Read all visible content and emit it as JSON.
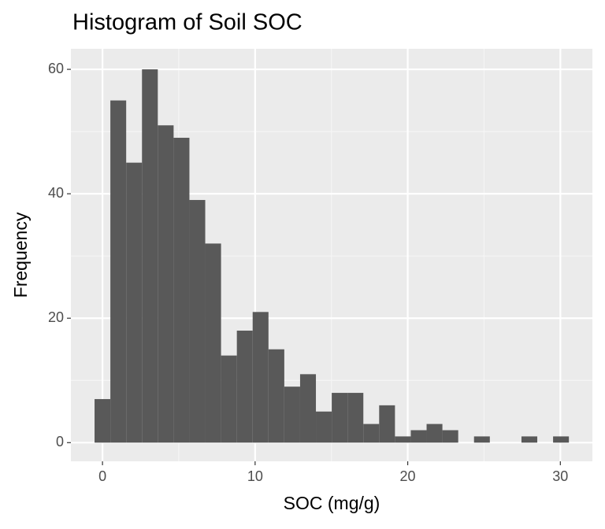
{
  "chart_data": {
    "type": "histogram",
    "title": "Histogram of Soil SOC",
    "x_label": "SOC (mg/g)",
    "y_label": "Frequency",
    "bins": [
      -0.52,
      0.516,
      1.552,
      2.588,
      3.624,
      4.66,
      5.696,
      6.732,
      7.768,
      8.804,
      9.84,
      10.876,
      11.912,
      12.948,
      13.984,
      15.02,
      16.056,
      17.092,
      18.128,
      19.164,
      20.2,
      21.236,
      22.272,
      23.308,
      24.344,
      25.38,
      26.416,
      27.452,
      28.488,
      29.524,
      30.56
    ],
    "values": [
      7,
      55,
      45,
      60,
      51,
      49,
      39,
      32,
      14,
      18,
      21,
      15,
      9,
      11,
      5,
      8,
      8,
      3,
      6,
      1,
      2,
      3,
      2,
      0,
      1,
      0,
      0,
      1,
      0,
      1
    ],
    "color": "#595959",
    "xlim": [
      -2.07,
      32.1
    ],
    "xticks": [
      0,
      10,
      20,
      30
    ],
    "x_minor_ticks": [
      5,
      15,
      25
    ],
    "ylim": [
      -3.0,
      63.3
    ],
    "yticks": [
      0,
      20,
      40,
      60
    ],
    "y_minor_ticks": [
      10,
      30,
      50
    ],
    "grid": true
  }
}
